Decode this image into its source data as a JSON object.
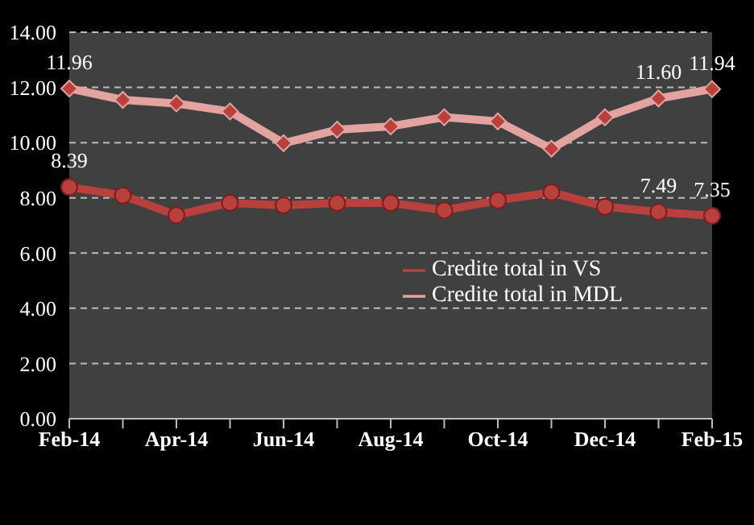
{
  "chart_data": {
    "type": "line",
    "categories": [
      "Feb-14",
      null,
      "Apr-14",
      null,
      "Jun-14",
      null,
      "Aug-14",
      null,
      "Oct-14",
      null,
      "Dec-14",
      null,
      "Feb-15"
    ],
    "series": [
      {
        "name": "Credite total in VS",
        "color": "#b8403d",
        "marker": "circle",
        "values": [
          8.39,
          8.09,
          7.37,
          7.82,
          7.73,
          7.82,
          7.82,
          7.55,
          7.91,
          8.2,
          7.68,
          7.49,
          7.35
        ],
        "value_labels": [
          "8.39",
          null,
          null,
          null,
          null,
          null,
          null,
          null,
          null,
          null,
          null,
          "7.49",
          "7.35"
        ]
      },
      {
        "name": "Credite total in MDL",
        "color": "#e3a3a1",
        "marker": "diamond",
        "values": [
          11.96,
          11.55,
          11.42,
          11.13,
          9.98,
          10.47,
          10.59,
          10.92,
          10.77,
          9.78,
          10.92,
          11.6,
          11.94
        ],
        "value_labels": [
          "11.96",
          null,
          null,
          null,
          null,
          null,
          null,
          null,
          null,
          null,
          null,
          "11.60",
          "11.94"
        ]
      }
    ],
    "ylim": [
      0,
      14
    ],
    "yticks": [
      {
        "value": 0,
        "label": "0.00"
      },
      {
        "value": 2,
        "label": "2.00"
      },
      {
        "value": 4,
        "label": "4.00"
      },
      {
        "value": 6,
        "label": "6.00"
      },
      {
        "value": 8,
        "label": "8.00"
      },
      {
        "value": 10,
        "label": "10.00"
      },
      {
        "value": 12,
        "label": "12.00"
      },
      {
        "value": 14,
        "label": "14.00"
      }
    ],
    "grid": "y",
    "legend": "right",
    "line_style": "solid"
  }
}
